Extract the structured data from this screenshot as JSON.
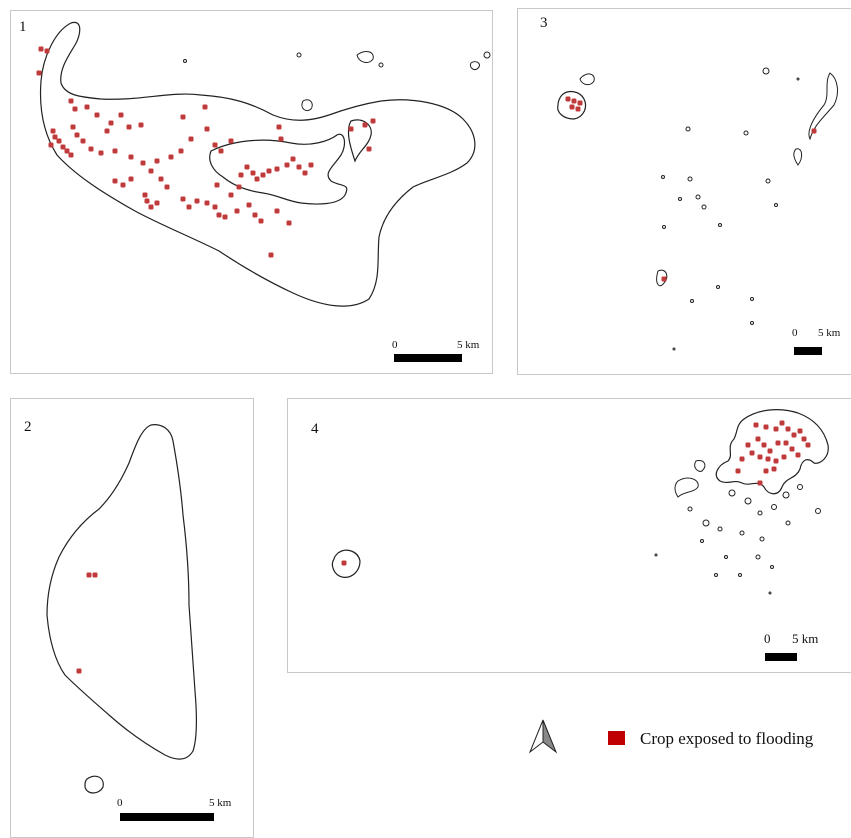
{
  "panels": [
    {
      "id": "1",
      "scalebar": {
        "start": "0",
        "end": "5 km"
      }
    },
    {
      "id": "2",
      "scalebar": {
        "start": "0",
        "end": "5 km"
      }
    },
    {
      "id": "3",
      "scalebar": {
        "start": "0",
        "end": "5 km"
      }
    },
    {
      "id": "4",
      "scalebar": {
        "start": "0",
        "end": "5 km"
      }
    }
  ],
  "legend": {
    "label": "Crop exposed to flooding",
    "swatch_color": "#c00000"
  },
  "colors": {
    "coastline": "#222222",
    "exposed_crop": "#c0393b",
    "frame": "#c8c8c8"
  },
  "icons": {
    "north_arrow": "north-arrow-icon"
  }
}
